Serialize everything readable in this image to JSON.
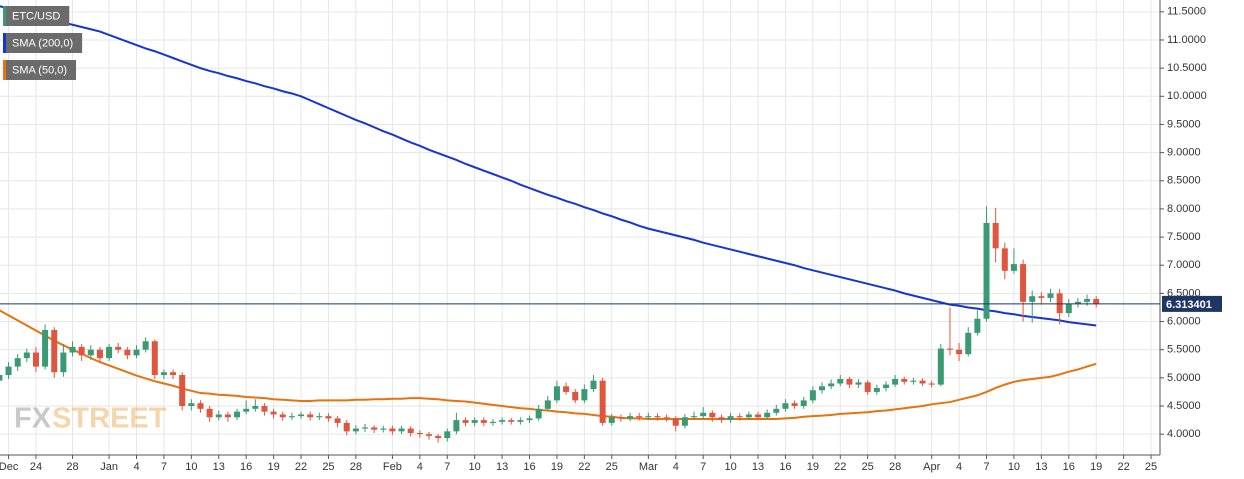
{
  "chart_data": {
    "type": "candlestick",
    "categories": [
      null,
      "Dec",
      null,
      null,
      "24",
      null,
      null,
      null,
      "28",
      null,
      null,
      null,
      "Jan",
      null,
      null,
      "4",
      null,
      null,
      "7",
      null,
      null,
      "10",
      null,
      null,
      "13",
      null,
      null,
      "16",
      null,
      null,
      "19",
      null,
      null,
      "22",
      null,
      null,
      "25",
      null,
      null,
      "28",
      null,
      null,
      null,
      "Feb",
      null,
      null,
      "4",
      null,
      null,
      "7",
      null,
      null,
      "10",
      null,
      null,
      "13",
      null,
      null,
      "16",
      null,
      null,
      "19",
      null,
      null,
      "22",
      null,
      null,
      "25",
      null,
      null,
      null,
      "Mar",
      null,
      null,
      "4",
      null,
      null,
      "7",
      null,
      null,
      "10",
      null,
      null,
      "13",
      null,
      null,
      "16",
      null,
      null,
      "19",
      null,
      null,
      "22",
      null,
      null,
      "25",
      null,
      null,
      "28",
      null,
      null,
      null,
      "Apr",
      null,
      null,
      "4",
      null,
      null,
      "7",
      null,
      null,
      "10",
      null,
      null,
      "13",
      null,
      null,
      "16",
      null,
      null,
      "19",
      null,
      null,
      "22",
      null,
      null,
      "25"
    ],
    "series": [
      {
        "name": "ETC/USD",
        "type": "candlestick",
        "color": "#3a9a73",
        "up_color": "#3a9a73",
        "down_color": "#e0553d",
        "open": [
          4.95,
          5.05,
          5.2,
          5.35,
          5.45,
          5.2,
          5.85,
          5.1,
          5.45,
          5.55,
          5.4,
          5.5,
          5.35,
          5.55,
          5.5,
          5.4,
          5.5,
          5.65,
          5.05,
          5.1,
          5.05,
          4.5,
          4.55,
          4.45,
          4.3,
          4.35,
          4.3,
          4.4,
          4.45,
          4.5,
          4.4,
          4.35,
          4.3,
          4.32,
          4.35,
          4.3,
          4.32,
          4.28,
          4.2,
          4.05,
          4.1,
          4.12,
          4.08,
          4.1,
          4.05,
          4.1,
          4.02,
          4.0,
          3.97,
          3.93,
          4.05,
          4.25,
          4.2,
          4.25,
          4.2,
          4.22,
          4.25,
          4.22,
          4.25,
          4.28,
          4.45,
          4.6,
          4.85,
          4.75,
          4.6,
          4.8,
          4.95,
          4.2,
          4.3,
          4.28,
          4.32,
          4.3,
          4.32,
          4.3,
          4.28,
          4.15,
          4.3,
          4.32,
          4.38,
          4.3,
          4.25,
          4.32,
          4.3,
          4.35,
          4.3,
          4.38,
          4.45,
          4.55,
          4.5,
          4.6,
          4.78,
          4.85,
          4.9,
          4.98,
          4.88,
          4.92,
          4.75,
          4.82,
          4.88,
          4.98,
          4.93,
          4.95,
          4.9,
          4.88,
          5.52,
          5.5,
          5.42,
          5.8,
          6.05,
          7.75,
          7.3,
          6.9,
          7.02,
          6.35,
          6.45,
          6.42,
          6.5,
          6.15,
          6.32,
          6.35,
          6.4,
          null,
          null,
          null,
          null,
          null,
          null
        ],
        "high": [
          5.12,
          5.28,
          5.42,
          5.52,
          5.55,
          5.95,
          5.9,
          5.6,
          5.65,
          5.6,
          5.58,
          5.55,
          5.6,
          5.62,
          5.55,
          5.58,
          5.72,
          5.68,
          5.15,
          5.15,
          5.1,
          4.62,
          4.6,
          4.5,
          4.42,
          4.4,
          4.45,
          4.6,
          4.62,
          4.55,
          4.45,
          4.4,
          4.38,
          4.4,
          4.4,
          4.38,
          4.37,
          4.32,
          4.25,
          4.16,
          4.18,
          4.16,
          4.15,
          4.15,
          4.15,
          4.14,
          4.07,
          4.04,
          4.0,
          4.1,
          4.38,
          4.3,
          4.3,
          4.3,
          4.27,
          4.3,
          4.29,
          4.3,
          4.33,
          4.52,
          4.68,
          4.95,
          4.92,
          4.8,
          4.88,
          5.05,
          5.0,
          4.36,
          4.35,
          4.38,
          4.38,
          4.38,
          4.37,
          4.35,
          4.32,
          4.36,
          4.4,
          4.48,
          4.42,
          4.35,
          4.38,
          4.37,
          4.4,
          4.4,
          4.44,
          4.52,
          4.62,
          4.6,
          4.66,
          4.85,
          4.92,
          4.97,
          5.05,
          5.02,
          4.98,
          4.96,
          4.88,
          4.94,
          5.05,
          5.02,
          5.0,
          4.99,
          4.95,
          5.6,
          6.25,
          5.62,
          5.9,
          6.2,
          8.05,
          8.02,
          7.4,
          7.3,
          7.1,
          6.55,
          6.52,
          6.58,
          6.58,
          6.4,
          6.42,
          6.48,
          6.45,
          null,
          null,
          null,
          null,
          null,
          null
        ],
        "low": [
          4.85,
          4.98,
          5.12,
          5.28,
          5.1,
          5.15,
          5.0,
          5.02,
          5.38,
          5.3,
          5.32,
          5.28,
          5.3,
          5.44,
          5.33,
          5.35,
          5.45,
          4.98,
          4.98,
          4.98,
          4.42,
          4.42,
          4.38,
          4.22,
          4.25,
          4.22,
          4.25,
          4.35,
          4.4,
          4.33,
          4.28,
          4.24,
          4.25,
          4.27,
          4.24,
          4.25,
          4.22,
          4.12,
          3.98,
          4.0,
          4.04,
          4.02,
          4.03,
          3.99,
          4.0,
          3.96,
          3.94,
          3.9,
          3.85,
          3.87,
          4.0,
          4.14,
          4.14,
          4.14,
          4.15,
          4.17,
          4.17,
          4.17,
          4.2,
          4.24,
          4.4,
          4.55,
          4.7,
          4.55,
          4.55,
          4.75,
          4.15,
          4.15,
          4.22,
          4.23,
          4.24,
          4.25,
          4.24,
          4.22,
          4.05,
          4.1,
          4.25,
          4.27,
          4.22,
          4.2,
          4.2,
          4.24,
          4.25,
          4.25,
          4.26,
          4.33,
          4.4,
          4.45,
          4.45,
          4.55,
          4.72,
          4.8,
          4.85,
          4.82,
          4.82,
          4.7,
          4.7,
          4.76,
          4.84,
          4.88,
          4.88,
          4.85,
          4.83,
          4.85,
          5.4,
          5.3,
          5.38,
          5.75,
          6.0,
          7.05,
          6.75,
          6.85,
          6.0,
          5.98,
          6.3,
          6.35,
          5.95,
          6.08,
          6.25,
          6.28,
          6.25,
          null,
          null,
          null,
          null,
          null,
          null
        ],
        "close": [
          5.05,
          5.2,
          5.35,
          5.45,
          5.2,
          5.85,
          5.1,
          5.45,
          5.55,
          5.4,
          5.5,
          5.35,
          5.55,
          5.5,
          5.4,
          5.5,
          5.65,
          5.05,
          5.1,
          5.05,
          4.5,
          4.55,
          4.45,
          4.3,
          4.35,
          4.3,
          4.4,
          4.45,
          4.5,
          4.4,
          4.35,
          4.3,
          4.32,
          4.35,
          4.3,
          4.32,
          4.28,
          4.2,
          4.05,
          4.1,
          4.12,
          4.08,
          4.1,
          4.05,
          4.1,
          4.02,
          4.0,
          3.97,
          3.93,
          4.05,
          4.25,
          4.2,
          4.25,
          4.2,
          4.22,
          4.25,
          4.22,
          4.25,
          4.28,
          4.45,
          4.6,
          4.85,
          4.75,
          4.6,
          4.8,
          4.95,
          4.2,
          4.3,
          4.28,
          4.32,
          4.3,
          4.32,
          4.3,
          4.28,
          4.15,
          4.3,
          4.32,
          4.38,
          4.3,
          4.25,
          4.32,
          4.3,
          4.35,
          4.3,
          4.38,
          4.45,
          4.55,
          4.5,
          4.6,
          4.78,
          4.85,
          4.9,
          4.98,
          4.88,
          4.92,
          4.75,
          4.82,
          4.88,
          4.98,
          4.93,
          4.95,
          4.9,
          4.88,
          5.52,
          5.5,
          5.42,
          5.8,
          6.05,
          7.75,
          7.3,
          6.9,
          7.02,
          6.35,
          6.45,
          6.42,
          6.5,
          6.15,
          6.32,
          6.35,
          6.4,
          6.31,
          null,
          null,
          null,
          null,
          null,
          null
        ]
      },
      {
        "name": "SMA (200,0)",
        "type": "line",
        "color": "#1535d6",
        "values": [
          11.6,
          11.56,
          11.52,
          11.48,
          11.44,
          11.4,
          11.35,
          11.31,
          11.27,
          11.23,
          11.19,
          11.15,
          11.09,
          11.03,
          10.97,
          10.91,
          10.85,
          10.8,
          10.74,
          10.68,
          10.62,
          10.56,
          10.5,
          10.45,
          10.41,
          10.36,
          10.32,
          10.27,
          10.23,
          10.18,
          10.14,
          10.09,
          10.05,
          10.0,
          9.93,
          9.86,
          9.79,
          9.72,
          9.65,
          9.58,
          9.52,
          9.45,
          9.38,
          9.32,
          9.25,
          9.18,
          9.12,
          9.05,
          8.99,
          8.93,
          8.87,
          8.8,
          8.74,
          8.68,
          8.62,
          8.56,
          8.5,
          8.43,
          8.37,
          8.31,
          8.25,
          8.2,
          8.14,
          8.09,
          8.03,
          7.98,
          7.92,
          7.87,
          7.81,
          7.76,
          7.7,
          7.65,
          7.61,
          7.57,
          7.53,
          7.49,
          7.45,
          7.4,
          7.36,
          7.32,
          7.28,
          7.24,
          7.2,
          7.16,
          7.12,
          7.08,
          7.04,
          7.0,
          6.95,
          6.91,
          6.87,
          6.83,
          6.79,
          6.75,
          6.71,
          6.67,
          6.63,
          6.59,
          6.55,
          6.5,
          6.46,
          6.42,
          6.38,
          6.34,
          6.3,
          6.28,
          6.25,
          6.23,
          6.2,
          6.18,
          6.15,
          6.13,
          6.1,
          6.08,
          6.06,
          6.04,
          6.02,
          5.99,
          5.97,
          5.95,
          5.93,
          null,
          null,
          null,
          null,
          null,
          null
        ]
      },
      {
        "name": "SMA (50,0)",
        "type": "line",
        "color": "#e8720c",
        "values": [
          6.2,
          6.11,
          6.02,
          5.93,
          5.84,
          5.75,
          5.66,
          5.58,
          5.5,
          5.43,
          5.35,
          5.28,
          5.22,
          5.16,
          5.1,
          5.04,
          4.99,
          4.94,
          4.9,
          4.86,
          4.81,
          4.77,
          4.73,
          4.72,
          4.7,
          4.69,
          4.68,
          4.66,
          4.65,
          4.64,
          4.62,
          4.61,
          4.6,
          4.59,
          4.59,
          4.6,
          4.6,
          4.6,
          4.6,
          4.61,
          4.61,
          4.62,
          4.62,
          4.63,
          4.63,
          4.64,
          4.64,
          4.63,
          4.62,
          4.6,
          4.59,
          4.58,
          4.56,
          4.54,
          4.52,
          4.5,
          4.48,
          4.46,
          4.45,
          4.43,
          4.42,
          4.4,
          4.39,
          4.37,
          4.36,
          4.34,
          4.32,
          4.31,
          4.29,
          4.28,
          4.28,
          4.27,
          4.27,
          4.27,
          4.27,
          4.27,
          4.27,
          4.27,
          4.27,
          4.27,
          4.27,
          4.27,
          4.27,
          4.27,
          4.27,
          4.27,
          4.28,
          4.29,
          4.31,
          4.32,
          4.33,
          4.34,
          4.36,
          4.37,
          4.38,
          4.39,
          4.41,
          4.42,
          4.44,
          4.46,
          4.48,
          4.5,
          4.53,
          4.55,
          4.57,
          4.61,
          4.65,
          4.69,
          4.75,
          4.82,
          4.88,
          4.93,
          4.96,
          4.98,
          5.0,
          5.02,
          5.06,
          5.11,
          5.15,
          5.2,
          5.25,
          null,
          null,
          null,
          null,
          null,
          null
        ]
      }
    ],
    "ylim": [
      3.63,
      11.71
    ],
    "yticks": [
      {
        "value": 4,
        "label": "4.0000"
      },
      {
        "value": 4.5,
        "label": "4.5000"
      },
      {
        "value": 5,
        "label": "5.0000"
      },
      {
        "value": 5.5,
        "label": "5.5000"
      },
      {
        "value": 6,
        "label": "6.0000"
      },
      {
        "value": 6.5,
        "label": "6.5000"
      },
      {
        "value": 7,
        "label": "7.0000"
      },
      {
        "value": 7.5,
        "label": "7.5000"
      },
      {
        "value": 8,
        "label": "8.0000"
      },
      {
        "value": 8.5,
        "label": "8.5000"
      },
      {
        "value": 9,
        "label": "9.0000"
      },
      {
        "value": 9.5,
        "label": "9.5000"
      },
      {
        "value": 10,
        "label": "10.0000"
      },
      {
        "value": 10.5,
        "label": "10.5000"
      },
      {
        "value": 11,
        "label": "11.0000"
      },
      {
        "value": 11.5,
        "label": "11.5000"
      }
    ],
    "price_line": {
      "value": 6.313401,
      "label": "6.313401",
      "color": "#1f3566"
    },
    "grid": true,
    "legend": "top-left",
    "watermark": [
      "FX",
      "STREET"
    ]
  }
}
